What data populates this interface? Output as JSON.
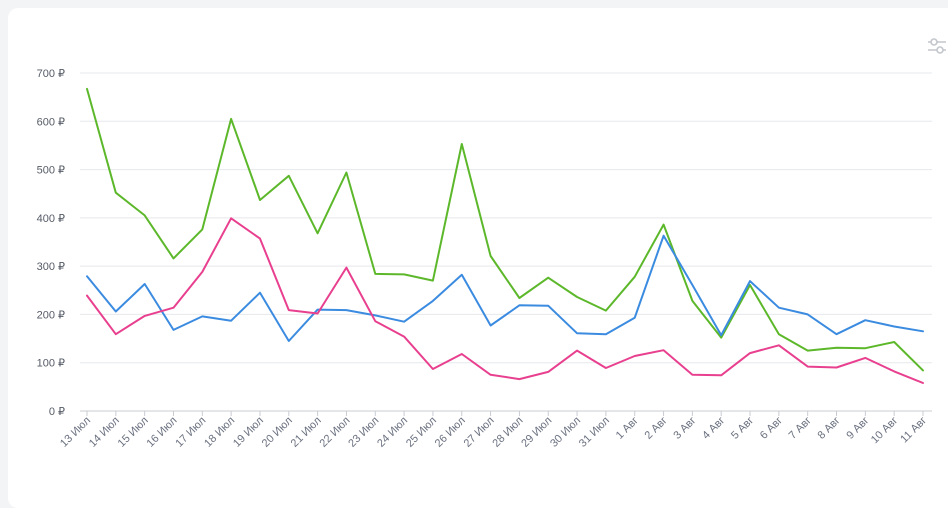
{
  "icons": {
    "settings": "sliders-icon"
  },
  "colors": {
    "green": "#5cb82a",
    "blue": "#3b8be0",
    "pink": "#e8408f",
    "grid": "#e6e8ec",
    "axis": "#c9ccd2"
  },
  "chart_data": {
    "type": "line",
    "title": "",
    "xlabel": "",
    "ylabel": "",
    "ylim": [
      0,
      700
    ],
    "y_ticks": [
      "0 ₽",
      "100 ₽",
      "200 ₽",
      "300 ₽",
      "400 ₽",
      "500 ₽",
      "600 ₽",
      "700 ₽"
    ],
    "grid": true,
    "legend": "none",
    "categories": [
      "13 Июл",
      "14 Июл",
      "15 Июл",
      "16 Июл",
      "17 Июл",
      "18 Июл",
      "19 Июл",
      "20 Июл",
      "21 Июл",
      "22 Июл",
      "23 Июл",
      "24 Июл",
      "25 Июл",
      "26 Июл",
      "27 Июл",
      "28 Июл",
      "29 Июл",
      "30 Июл",
      "31 Июл",
      "1 Авг",
      "2 Авг",
      "3 Авг",
      "4 Авг",
      "5 Авг",
      "6 Авг",
      "7 Авг",
      "8 Авг",
      "9 Авг",
      "10 Авг",
      "11 Авг"
    ],
    "series": [
      {
        "color": "#5cb82a",
        "values": [
          667,
          452,
          405,
          316,
          376,
          605,
          437,
          487,
          368,
          494,
          284,
          283,
          270,
          553,
          321,
          234,
          276,
          236,
          208,
          278,
          386,
          228,
          152,
          261,
          159,
          125,
          131,
          130,
          143,
          84
        ]
      },
      {
        "color": "#3b8be0",
        "values": [
          279,
          206,
          263,
          168,
          196,
          187,
          245,
          145,
          210,
          209,
          198,
          185,
          228,
          282,
          177,
          219,
          218,
          161,
          159,
          193,
          363,
          261,
          157,
          269,
          214,
          200,
          159,
          188,
          175,
          165
        ]
      },
      {
        "color": "#e8408f",
        "values": [
          239,
          159,
          197,
          214,
          288,
          399,
          357,
          209,
          202,
          297,
          186,
          154,
          87,
          118,
          75,
          66,
          81,
          125,
          89,
          114,
          126,
          75,
          74,
          120,
          136,
          92,
          90,
          110,
          82,
          58
        ]
      }
    ]
  }
}
